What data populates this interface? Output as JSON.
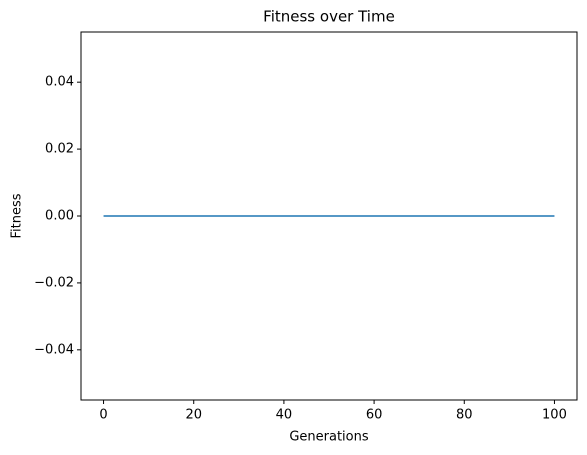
{
  "chart_data": {
    "type": "line",
    "title": "Fitness over Time",
    "x_label": "Generations",
    "y_label": "Fitness",
    "x": [
      0,
      1,
      2,
      3,
      4,
      5,
      6,
      7,
      8,
      9,
      10,
      11,
      12,
      13,
      14,
      15,
      16,
      17,
      18,
      19,
      20,
      21,
      22,
      23,
      24,
      25,
      26,
      27,
      28,
      29,
      30,
      31,
      32,
      33,
      34,
      35,
      36,
      37,
      38,
      39,
      40,
      41,
      42,
      43,
      44,
      45,
      46,
      47,
      48,
      49,
      50,
      51,
      52,
      53,
      54,
      55,
      56,
      57,
      58,
      59,
      60,
      61,
      62,
      63,
      64,
      65,
      66,
      67,
      68,
      69,
      70,
      71,
      72,
      73,
      74,
      75,
      76,
      77,
      78,
      79,
      80,
      81,
      82,
      83,
      84,
      85,
      86,
      87,
      88,
      89,
      90,
      91,
      92,
      93,
      94,
      95,
      96,
      97,
      98,
      99,
      100
    ],
    "series": [
      {
        "name": "Fitness",
        "color": "#1f77b4",
        "values": [
          0,
          0,
          0,
          0,
          0,
          0,
          0,
          0,
          0,
          0,
          0,
          0,
          0,
          0,
          0,
          0,
          0,
          0,
          0,
          0,
          0,
          0,
          0,
          0,
          0,
          0,
          0,
          0,
          0,
          0,
          0,
          0,
          0,
          0,
          0,
          0,
          0,
          0,
          0,
          0,
          0,
          0,
          0,
          0,
          0,
          0,
          0,
          0,
          0,
          0,
          0,
          0,
          0,
          0,
          0,
          0,
          0,
          0,
          0,
          0,
          0,
          0,
          0,
          0,
          0,
          0,
          0,
          0,
          0,
          0,
          0,
          0,
          0,
          0,
          0,
          0,
          0,
          0,
          0,
          0,
          0,
          0,
          0,
          0,
          0,
          0,
          0,
          0,
          0,
          0,
          0,
          0,
          0,
          0,
          0,
          0,
          0,
          0,
          0,
          0,
          0
        ]
      }
    ],
    "xlim": [
      -5,
      105
    ],
    "xticks": [
      0,
      20,
      40,
      60,
      80,
      100
    ],
    "ylim": [
      -0.055,
      0.055
    ],
    "yticks": [
      {
        "value": -0.04,
        "label": "−0.04"
      },
      {
        "value": -0.02,
        "label": "−0.02"
      },
      {
        "value": 0,
        "label": "0.00"
      },
      {
        "value": 0.02,
        "label": "0.02"
      },
      {
        "value": 0.04,
        "label": "0.04"
      }
    ],
    "grid": false
  }
}
